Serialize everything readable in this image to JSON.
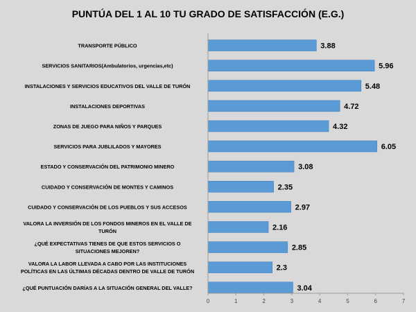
{
  "chart_data": {
    "type": "bar",
    "orientation": "horizontal",
    "title": "PUNTÚA DEL 1 AL 10 TU GRADO DE SATISFACCIÓN (E.G.)",
    "categories": [
      [
        "TRANSPORTE PÚBLICO"
      ],
      [
        "SERVICIOS SANITARIOS(Ambulatorios, urgencias,etc)"
      ],
      [
        "INSTALACIONES Y SERVICIOS EDUCATIVOS DEL VALLE DE TURÓN"
      ],
      [
        "INSTALACIONES DEPORTIVAS"
      ],
      [
        "ZONAS DE JUEGO PARA NIÑOS Y PARQUES"
      ],
      [
        "SERVICIOS PARA JUBLILADOS Y MAYORES"
      ],
      [
        "ESTADO Y CONSERVACIÓN DEL PATRIMONIO MINERO"
      ],
      [
        "CUIDADO Y CONSERVACIÓN DE MONTES Y CAMINOS"
      ],
      [
        "CUIDADO Y CONSERVACIÓN DE LOS PUEBLOS Y SUS ACCESOS"
      ],
      [
        "VALORA LA INVERSIÓN DE LOS FONDOS MINEROS EN EL VALLE DE",
        "TURÓN"
      ],
      [
        "¿QUÉ EXPECTATIVAS TIENES DE QUE ESTOS SERVICIOS O",
        "SITUACIONES MEJOREN?"
      ],
      [
        "VALORA LA LABOR LLEVADA A CABO POR LAS INSTITUCIONES",
        "POLÍTICAS EN LAS ÚLTIMAS DÉCADAS DENTRO DE VALLE DE TURÓN"
      ],
      [
        "¿QUÉ PUNTUACIÓN DARÍAS A LA SITUACIÓN GENERAL DEL VALLE?"
      ]
    ],
    "values": [
      3.88,
      5.96,
      5.48,
      4.72,
      4.32,
      6.05,
      3.08,
      2.35,
      2.97,
      2.16,
      2.85,
      2.3,
      3.04
    ],
    "value_labels": [
      "3.88",
      "5.96",
      "5.48",
      "4.72",
      "4.32",
      "6.05",
      "3.08",
      "2.35",
      "2.97",
      "2.16",
      "2.85",
      "2.3",
      "3.04"
    ],
    "xlim": [
      0,
      7
    ],
    "xticks": [
      0,
      1,
      2,
      3,
      4,
      5,
      6,
      7
    ],
    "grid": false,
    "legend": "none",
    "colors": {
      "bar": "#5b9bd5",
      "bar_edge": "#4a86c0",
      "background": "#d9d9d9",
      "axis": "#9a9a9a"
    }
  }
}
